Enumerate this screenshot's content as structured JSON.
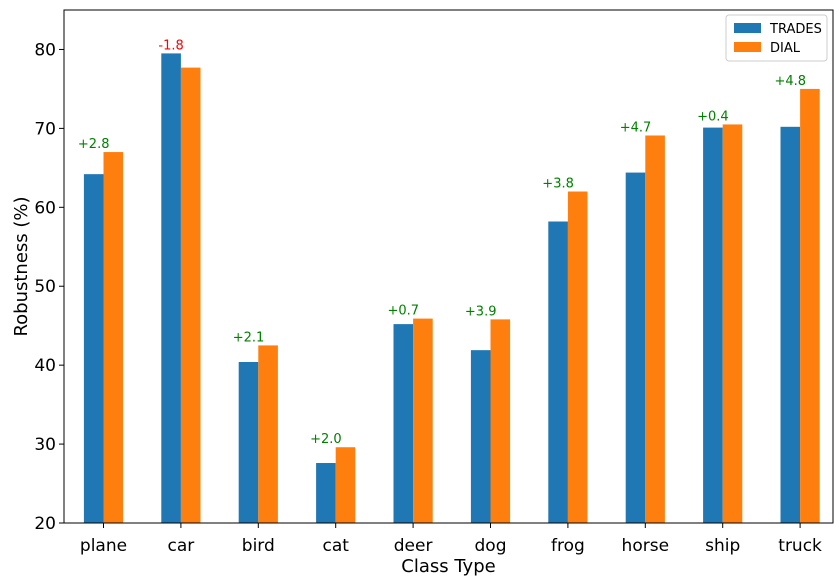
{
  "chart_data": {
    "type": "bar",
    "title": "",
    "xlabel": "Class Type",
    "ylabel": "Robustness (%)",
    "ylim": [
      20,
      85
    ],
    "yticks": [
      20,
      30,
      40,
      50,
      60,
      70,
      80
    ],
    "grid": false,
    "legend_position": "top-right",
    "categories": [
      "plane",
      "car",
      "bird",
      "cat",
      "deer",
      "dog",
      "frog",
      "horse",
      "ship",
      "truck"
    ],
    "series": [
      {
        "name": "TRADES",
        "color": "#1f77b4",
        "values": [
          64.2,
          79.5,
          40.4,
          27.6,
          45.2,
          41.9,
          58.2,
          64.4,
          70.1,
          70.2
        ]
      },
      {
        "name": "DIAL",
        "color": "#ff7f0e",
        "values": [
          67.0,
          77.7,
          42.5,
          29.6,
          45.9,
          45.8,
          62.0,
          69.1,
          70.5,
          75.0
        ]
      }
    ],
    "annotations": [
      {
        "category": "plane",
        "text": "+2.8",
        "color": "#008000"
      },
      {
        "category": "car",
        "text": "-1.8",
        "color": "#ff0000"
      },
      {
        "category": "bird",
        "text": "+2.1",
        "color": "#008000"
      },
      {
        "category": "cat",
        "text": "+2.0",
        "color": "#008000"
      },
      {
        "category": "deer",
        "text": "+0.7",
        "color": "#008000"
      },
      {
        "category": "dog",
        "text": "+3.9",
        "color": "#008000"
      },
      {
        "category": "frog",
        "text": "+3.8",
        "color": "#008000"
      },
      {
        "category": "horse",
        "text": "+4.7",
        "color": "#008000"
      },
      {
        "category": "ship",
        "text": "+0.4",
        "color": "#008000"
      },
      {
        "category": "truck",
        "text": "+4.8",
        "color": "#008000"
      }
    ]
  }
}
